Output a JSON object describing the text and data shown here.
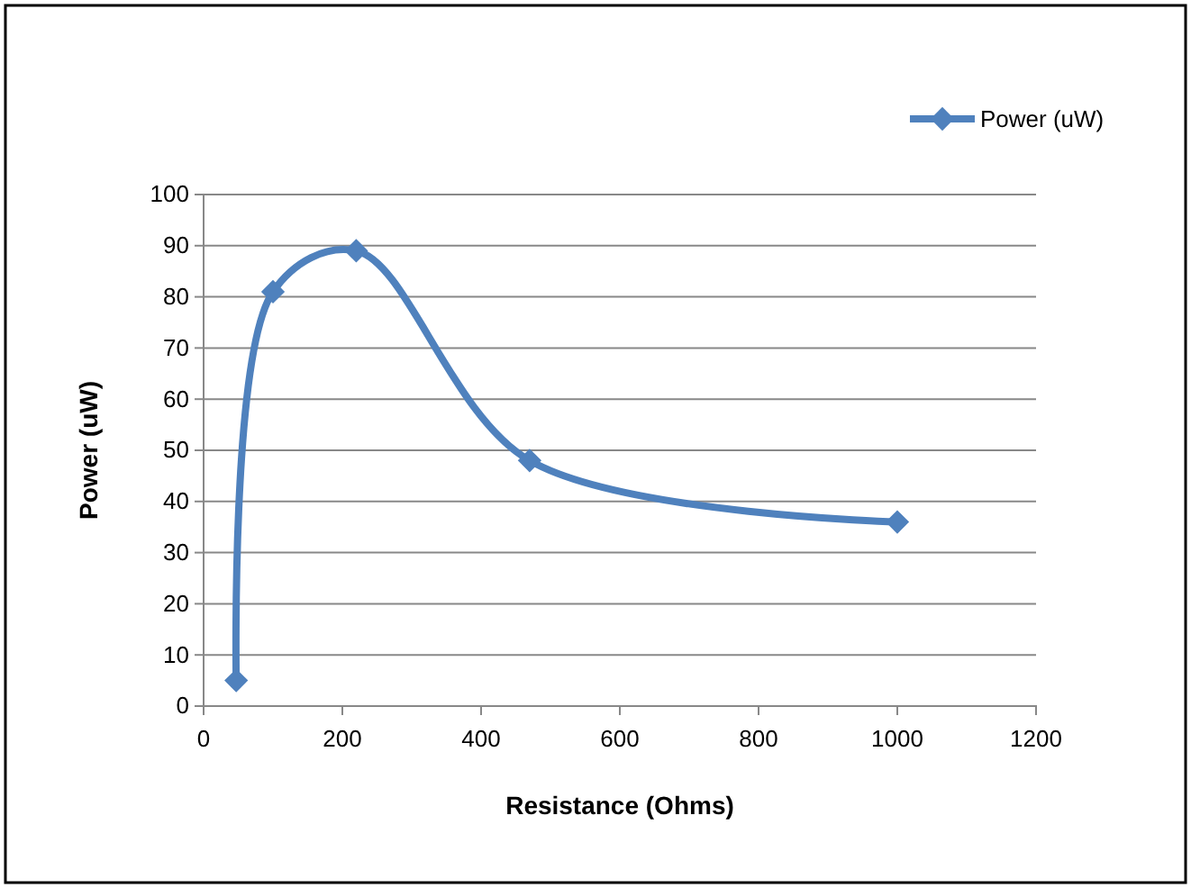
{
  "chart_data": {
    "type": "line",
    "xlabel": "Resistance (Ohms)",
    "ylabel": "Power (uW)",
    "series": [
      {
        "name": "Power (uW)",
        "color": "#4f81bd",
        "x": [
          47,
          100,
          220,
          470,
          1000
        ],
        "values": [
          5,
          81,
          89,
          48,
          36
        ]
      }
    ],
    "xlim": [
      0,
      1200
    ],
    "xticks": [
      0,
      200,
      400,
      600,
      800,
      1000,
      1200
    ],
    "ylim": [
      0,
      100
    ],
    "yticks": [
      0,
      10,
      20,
      30,
      40,
      50,
      60,
      70,
      80,
      90,
      100
    ],
    "grid": "y",
    "legend": "top right",
    "marker": "diamond",
    "line_style": "solid"
  }
}
